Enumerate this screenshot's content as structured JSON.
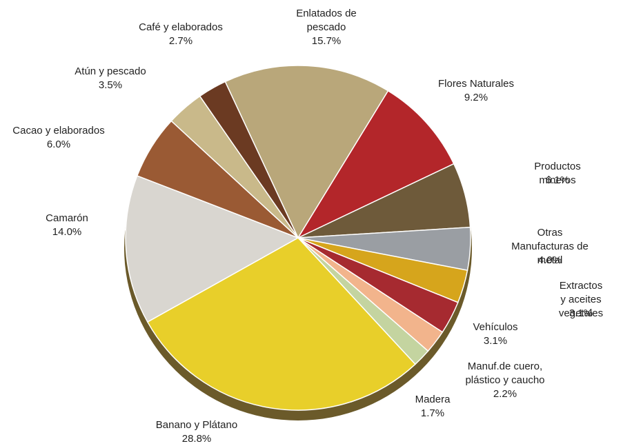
{
  "chart_data": {
    "type": "pie",
    "categories": [
      "Enlatados de\npescado",
      "Flores Naturales",
      "Productos mineros",
      "Otras\nManufacturas de metal",
      "Extractos y aceites\nvegetales",
      "Vehículos",
      "Manuf.de cuero,\nplástico y caucho",
      "Madera",
      "Banano y Plátano",
      "Camarón",
      "Cacao y elaborados",
      "Atún y pescado",
      "Café y elaborados"
    ],
    "values": [
      15.7,
      9.2,
      6.1,
      4.0,
      3.1,
      3.1,
      2.2,
      1.7,
      28.8,
      14.0,
      6.0,
      3.5,
      2.7
    ],
    "value_labels": [
      "15.7%",
      "9.2%",
      "6.1%",
      "4.0%",
      "3.1%",
      "3.1%",
      "2.2%",
      "1.7%",
      "28.8%",
      "14.0%",
      "6.0%",
      "3.5%",
      "2.7%"
    ],
    "colors": [
      "#b9a77a",
      "#b3262a",
      "#6e5a3a",
      "#9a9ea3",
      "#d6a51c",
      "#a62a30",
      "#f2b48c",
      "#c4d4a0",
      "#e8cf2a",
      "#d9d6d0",
      "#9a5a34",
      "#c9b98a",
      "#6b3a22"
    ]
  }
}
